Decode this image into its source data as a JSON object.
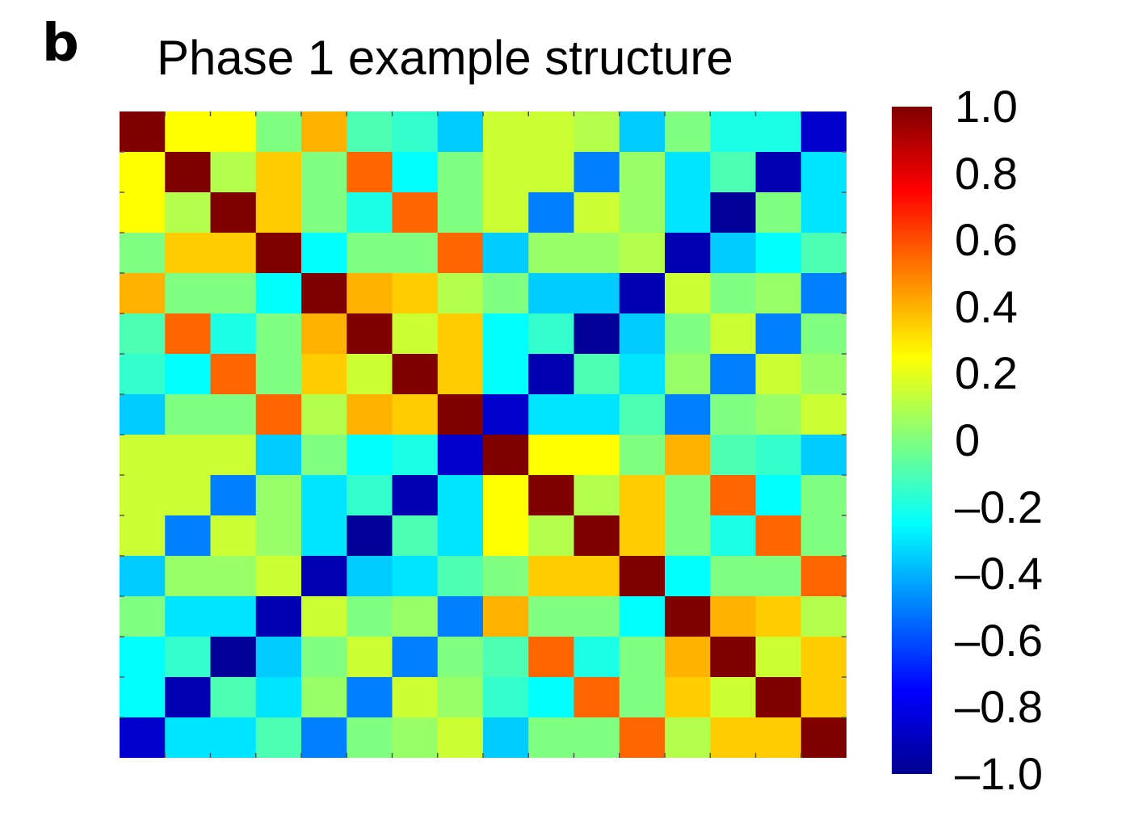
{
  "panel_label": "b",
  "chart_data": {
    "type": "heatmap",
    "title": "Phase 1 example structure",
    "xlabel": "",
    "ylabel": "",
    "rows": 16,
    "cols": 16,
    "grid": false,
    "colormap": "jet",
    "color_range": [
      -1.0,
      1.0
    ],
    "colorbar": {
      "placement": "right",
      "ticks": [
        1.0,
        0.8,
        0.6,
        0.4,
        0.2,
        0,
        -0.2,
        -0.4,
        -0.6,
        -0.8,
        -1.0
      ],
      "tick_labels": [
        "1.0",
        "0.8",
        "0.6",
        "0.4",
        "0.2",
        "0",
        "–0.2",
        "–0.4",
        "–0.6",
        "–0.8",
        "–1.0"
      ]
    },
    "values": [
      [
        1.0,
        0.25,
        0.25,
        0.0,
        0.4,
        -0.1,
        -0.15,
        -0.35,
        0.15,
        0.15,
        0.1,
        -0.35,
        0.0,
        -0.2,
        -0.2,
        -0.85
      ],
      [
        0.25,
        1.0,
        0.1,
        0.35,
        0.0,
        0.55,
        -0.25,
        0.0,
        0.15,
        0.15,
        -0.5,
        0.05,
        -0.3,
        -0.1,
        -0.9,
        -0.3
      ],
      [
        0.25,
        0.1,
        1.0,
        0.35,
        0.0,
        -0.2,
        0.55,
        0.0,
        0.15,
        -0.5,
        0.15,
        0.05,
        -0.3,
        -0.95,
        0.0,
        -0.3
      ],
      [
        0.0,
        0.35,
        0.35,
        1.0,
        -0.25,
        0.0,
        0.0,
        0.55,
        -0.35,
        0.05,
        0.05,
        0.1,
        -0.9,
        -0.35,
        -0.25,
        -0.1
      ],
      [
        0.4,
        0.0,
        0.0,
        -0.25,
        1.0,
        0.4,
        0.35,
        0.1,
        0.0,
        -0.35,
        -0.35,
        -0.9,
        0.15,
        0.0,
        0.05,
        -0.5
      ],
      [
        -0.1,
        0.55,
        -0.2,
        0.0,
        0.4,
        1.0,
        0.15,
        0.35,
        -0.25,
        -0.15,
        -0.95,
        -0.35,
        0.0,
        0.15,
        -0.5,
        0.0
      ],
      [
        -0.15,
        -0.25,
        0.55,
        0.0,
        0.35,
        0.15,
        1.0,
        0.35,
        -0.25,
        -0.9,
        -0.1,
        -0.3,
        0.05,
        -0.5,
        0.15,
        0.05
      ],
      [
        -0.35,
        0.0,
        0.0,
        0.55,
        0.1,
        0.4,
        0.35,
        1.0,
        -0.85,
        -0.3,
        -0.3,
        -0.1,
        -0.5,
        0.0,
        0.05,
        0.15
      ],
      [
        0.15,
        0.15,
        0.15,
        -0.35,
        0.0,
        -0.25,
        -0.2,
        -0.85,
        1.0,
        0.25,
        0.25,
        0.0,
        0.4,
        -0.1,
        -0.15,
        -0.35
      ],
      [
        0.15,
        0.15,
        -0.5,
        0.05,
        -0.3,
        -0.15,
        -0.9,
        -0.3,
        0.25,
        1.0,
        0.1,
        0.35,
        0.0,
        0.55,
        -0.25,
        0.0
      ],
      [
        0.15,
        -0.5,
        0.15,
        0.05,
        -0.3,
        -0.95,
        -0.1,
        -0.3,
        0.25,
        0.1,
        1.0,
        0.35,
        0.0,
        -0.2,
        0.55,
        0.0
      ],
      [
        -0.35,
        0.05,
        0.05,
        0.15,
        -0.9,
        -0.35,
        -0.3,
        -0.1,
        0.0,
        0.35,
        0.35,
        1.0,
        -0.25,
        0.0,
        0.0,
        0.55
      ],
      [
        0.0,
        -0.3,
        -0.3,
        -0.9,
        0.15,
        0.0,
        0.05,
        -0.5,
        0.4,
        0.0,
        0.0,
        -0.25,
        1.0,
        0.4,
        0.35,
        0.1
      ],
      [
        -0.25,
        -0.15,
        -0.95,
        -0.35,
        0.0,
        0.15,
        -0.5,
        0.0,
        -0.1,
        0.55,
        -0.2,
        0.0,
        0.4,
        1.0,
        0.15,
        0.35
      ],
      [
        -0.25,
        -0.9,
        -0.1,
        -0.3,
        0.05,
        -0.5,
        0.15,
        0.05,
        -0.15,
        -0.25,
        0.55,
        0.0,
        0.35,
        0.15,
        1.0,
        0.35
      ],
      [
        -0.85,
        -0.3,
        -0.3,
        -0.1,
        -0.5,
        0.0,
        0.05,
        0.15,
        -0.35,
        0.0,
        0.0,
        0.55,
        0.1,
        0.35,
        0.35,
        1.0
      ]
    ]
  }
}
